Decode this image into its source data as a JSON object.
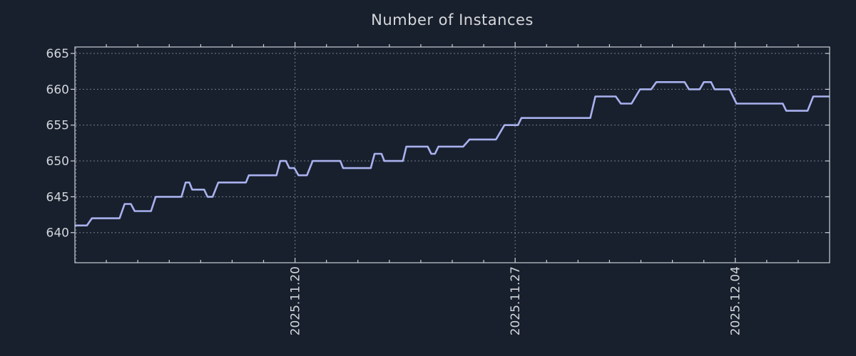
{
  "app": {
    "background_color": "#18202e"
  },
  "chart_data": {
    "type": "line",
    "title": "Number of Instances",
    "legend": "none",
    "grid": {
      "style": "dotted",
      "color": "#c3cad4"
    },
    "frame_color": "#cdd2d8",
    "text_color": "#d3d6da",
    "x_axis": {
      "unit": "days-from-left-edge",
      "range": [
        0,
        24
      ],
      "major_gridline_days": [
        0,
        7,
        14,
        21
      ],
      "minor_tick_step_days": 1,
      "tick_labels": [
        {
          "day": 7,
          "label": "2025.11.20"
        },
        {
          "day": 14,
          "label": "2025.11.27"
        },
        {
          "day": 21,
          "label": "2025.12.04"
        }
      ]
    },
    "y_axis": {
      "range": [
        635.8,
        665.9
      ],
      "ticks": [
        640,
        645,
        650,
        655,
        660,
        665
      ],
      "tick_labels": [
        "640",
        "645",
        "650",
        "655",
        "660",
        "665"
      ]
    },
    "series": [
      {
        "name": "instances",
        "color": "#a9b1ee",
        "line_width": 2.6,
        "points": [
          [
            0.0,
            641
          ],
          [
            0.38,
            641
          ],
          [
            0.54,
            642
          ],
          [
            1.42,
            642
          ],
          [
            1.58,
            644
          ],
          [
            1.78,
            644
          ],
          [
            1.9,
            643
          ],
          [
            2.42,
            643
          ],
          [
            2.57,
            645
          ],
          [
            3.39,
            645
          ],
          [
            3.52,
            647
          ],
          [
            3.64,
            647
          ],
          [
            3.73,
            646
          ],
          [
            4.11,
            646
          ],
          [
            4.22,
            645
          ],
          [
            4.38,
            645
          ],
          [
            4.56,
            647
          ],
          [
            5.44,
            647
          ],
          [
            5.53,
            648
          ],
          [
            6.41,
            648
          ],
          [
            6.53,
            650
          ],
          [
            6.71,
            650
          ],
          [
            6.82,
            649
          ],
          [
            6.98,
            649
          ],
          [
            7.11,
            648
          ],
          [
            7.38,
            648
          ],
          [
            7.56,
            650
          ],
          [
            8.44,
            650
          ],
          [
            8.53,
            649
          ],
          [
            9.41,
            649
          ],
          [
            9.53,
            651
          ],
          [
            9.75,
            651
          ],
          [
            9.84,
            650
          ],
          [
            10.43,
            650
          ],
          [
            10.54,
            652
          ],
          [
            11.22,
            652
          ],
          [
            11.33,
            651
          ],
          [
            11.45,
            651
          ],
          [
            11.56,
            652
          ],
          [
            12.35,
            652
          ],
          [
            12.55,
            653
          ],
          [
            13.39,
            653
          ],
          [
            13.66,
            655
          ],
          [
            14.09,
            655
          ],
          [
            14.2,
            656
          ],
          [
            16.39,
            656
          ],
          [
            16.55,
            659
          ],
          [
            17.2,
            659
          ],
          [
            17.36,
            658
          ],
          [
            17.7,
            658
          ],
          [
            17.97,
            660
          ],
          [
            18.33,
            660
          ],
          [
            18.49,
            661
          ],
          [
            19.39,
            661
          ],
          [
            19.53,
            660
          ],
          [
            19.87,
            660
          ],
          [
            20.0,
            661
          ],
          [
            20.23,
            661
          ],
          [
            20.34,
            660
          ],
          [
            20.82,
            660
          ],
          [
            21.04,
            658
          ],
          [
            22.51,
            658
          ],
          [
            22.62,
            657
          ],
          [
            23.3,
            657
          ],
          [
            23.48,
            659
          ],
          [
            24.0,
            659
          ]
        ]
      }
    ]
  }
}
